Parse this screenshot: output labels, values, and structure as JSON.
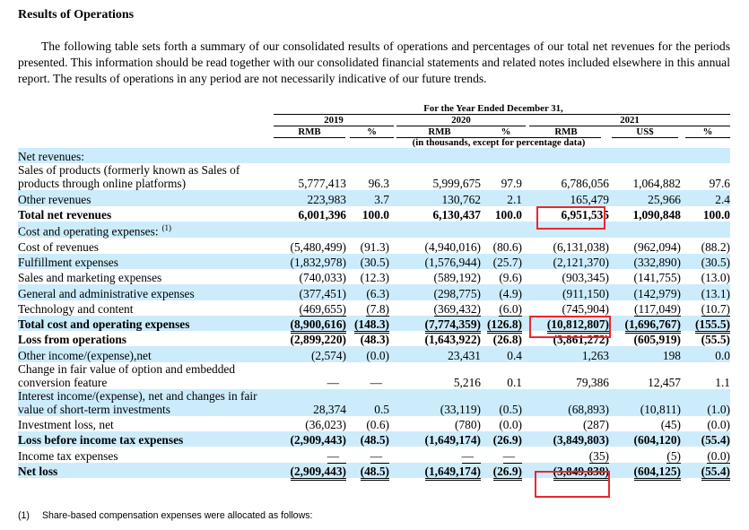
{
  "title": "Results of Operations",
  "intro": "The following table sets forth a summary of our consolidated results of operations and percentages of our total net revenues for the periods presented. This information should be read together with our consolidated financial statements and related notes included elsewhere in this annual report. The results of operations in any period are not necessarily indicative of our future trends.",
  "header": {
    "period": "For the Year Ended December 31,",
    "years": [
      "2019",
      "2020",
      "2021"
    ],
    "columns": [
      "RMB",
      "%",
      "RMB",
      "%",
      "RMB",
      "US$",
      "%"
    ],
    "units_note": "(in thousands, except for percentage data)"
  },
  "rows": [
    {
      "label": "Net revenues:",
      "values": [
        "",
        "",
        "",
        "",
        "",
        "",
        ""
      ],
      "shade": true,
      "bold": false
    },
    {
      "label": "Sales of products (formerly known as Sales of products through online platforms)",
      "values": [
        "5,777,413",
        "96.3",
        "5,999,675",
        "97.9",
        "6,786,056",
        "1,064,882",
        "97.6"
      ],
      "shade": false,
      "bold": false
    },
    {
      "label": "Other revenues",
      "values": [
        "223,983",
        "3.7",
        "130,762",
        "2.1",
        "165,479",
        "25,966",
        "2.4"
      ],
      "shade": true,
      "bold": false
    },
    {
      "label": "Total net revenues",
      "values": [
        "6,001,396",
        "100.0",
        "6,130,437",
        "100.0",
        "6,951,535",
        "1,090,848",
        "100.0"
      ],
      "shade": false,
      "bold": true
    },
    {
      "label": "Cost and operating expenses:",
      "footnote": "(1)",
      "values": [
        "",
        "",
        "",
        "",
        "",
        "",
        ""
      ],
      "shade": true,
      "bold": false
    },
    {
      "label": "Cost of revenues",
      "values": [
        "(5,480,499)",
        "(91.3)",
        "(4,940,016)",
        "(80.6)",
        "(6,131,038)",
        "(962,094)",
        "(88.2)"
      ],
      "shade": false,
      "bold": false
    },
    {
      "label": "Fulfillment expenses",
      "values": [
        "(1,832,978)",
        "(30.5)",
        "(1,576,944)",
        "(25.7)",
        "(2,121,370)",
        "(332,890)",
        "(30.5)"
      ],
      "shade": true,
      "bold": false
    },
    {
      "label": "Sales and marketing expenses",
      "values": [
        "(740,033)",
        "(12.3)",
        "(589,192)",
        "(9.6)",
        "(903,345)",
        "(141,755)",
        "(13.0)"
      ],
      "shade": false,
      "bold": false
    },
    {
      "label": "General and administrative expenses",
      "values": [
        "(377,451)",
        "(6.3)",
        "(298,775)",
        "(4.9)",
        "(911,150)",
        "(142,979)",
        "(13.1)"
      ],
      "shade": true,
      "bold": false
    },
    {
      "label": "Technology and content",
      "values": [
        "(469,655)",
        "(7.8)",
        "(369,432)",
        "(6.0)",
        "(745,904)",
        "(117,049)",
        "(10.7)"
      ],
      "shade": false,
      "bold": false
    },
    {
      "label": "Total cost and operating expenses",
      "values": [
        "(8,900,616)",
        "(148.3)",
        "(7,774,359)",
        "(126.8)",
        "(10,812,807)",
        "(1,696,767)",
        "(155.5)"
      ],
      "shade": true,
      "bold": true
    },
    {
      "label": "Loss from operations",
      "values": [
        "(2,899,220)",
        "(48.3)",
        "(1,643,922)",
        "(26.8)",
        "(3,861,272)",
        "(605,919)",
        "(55.5)"
      ],
      "shade": false,
      "bold": true
    },
    {
      "label": "Other income/(expense),net",
      "values": [
        "(2,574)",
        "(0.0)",
        "23,431",
        "0.4",
        "1,263",
        "198",
        "0.0"
      ],
      "shade": true,
      "bold": false
    },
    {
      "label": "Change in fair value of option and embedded conversion feature",
      "values": [
        "—",
        "—",
        "5,216",
        "0.1",
        "79,386",
        "12,457",
        "1.1"
      ],
      "shade": false,
      "bold": false
    },
    {
      "label": "Interest income/(expense), net and changes in fair value of short-term investments",
      "values": [
        "28,374",
        "0.5",
        "(33,119)",
        "(0.5)",
        "(68,893)",
        "(10,811)",
        "(1.0)"
      ],
      "shade": true,
      "bold": false
    },
    {
      "label": "Investment loss, net",
      "values": [
        "(36,023)",
        "(0.6)",
        "(780)",
        "(0.0)",
        "(287)",
        "(45)",
        "(0.0)"
      ],
      "shade": false,
      "bold": false
    },
    {
      "label": "Loss before income tax expenses",
      "values": [
        "(2,909,443)",
        "(48.5)",
        "(1,649,174)",
        "(26.9)",
        "(3,849,803)",
        "(604,120)",
        "(55.4)"
      ],
      "shade": true,
      "bold": true
    },
    {
      "label": "Income tax expenses",
      "values": [
        "—",
        "—",
        "—",
        "—",
        "(35)",
        "(5)",
        "(0.0)"
      ],
      "shade": false,
      "bold": false
    },
    {
      "label": "Net loss",
      "values": [
        "(2,909,443)",
        "(48.5)",
        "(1,649,174)",
        "(26.9)",
        "(3,849,838)",
        "(604,125)",
        "(55.4)"
      ],
      "shade": true,
      "bold": true
    }
  ],
  "footnote": {
    "marker": "(1)",
    "text": "Share-based compensation expenses were allocated as follows:"
  },
  "highlight_color": "#e8282e",
  "shade_color": "#ccecfc"
}
